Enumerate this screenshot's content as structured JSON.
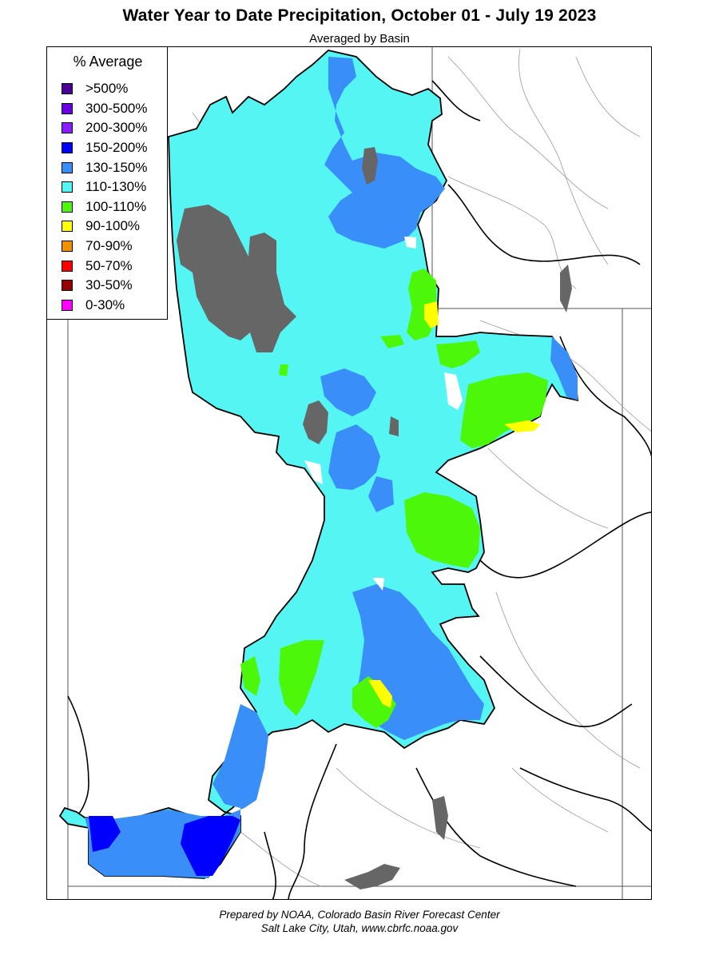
{
  "title": "Water Year to Date Precipitation, October 01  - July 19 2023",
  "subtitle": "Averaged by Basin",
  "legend": {
    "title": "% Average",
    "items": [
      {
        "label": ">500%",
        "color": "#4b0096"
      },
      {
        "label": "300-500%",
        "color": "#6a00e0"
      },
      {
        "label": "200-300%",
        "color": "#8a1eff"
      },
      {
        "label": "150-200%",
        "color": "#0000ff"
      },
      {
        "label": "130-150%",
        "color": "#3a8ef7"
      },
      {
        "label": "110-130%",
        "color": "#54f5f2"
      },
      {
        "label": "100-110%",
        "color": "#4df70a"
      },
      {
        "label": "90-100%",
        "color": "#ffff00"
      },
      {
        "label": "70-90%",
        "color": "#f29100"
      },
      {
        "label": "50-70%",
        "color": "#ff0000"
      },
      {
        "label": "30-50%",
        "color": "#960000"
      },
      {
        "label": "0-30%",
        "color": "#ff00ff"
      }
    ]
  },
  "map_colors": {
    "lake": "#666666",
    "state_border": "#555555",
    "basin_border": "#000000",
    "river": "#9a9a9a"
  },
  "credit": {
    "line1": "Prepared by NOAA, Colorado Basin River Forecast Center",
    "line2": "Salt Lake City, Utah, www.cbrfc.noaa.gov"
  }
}
